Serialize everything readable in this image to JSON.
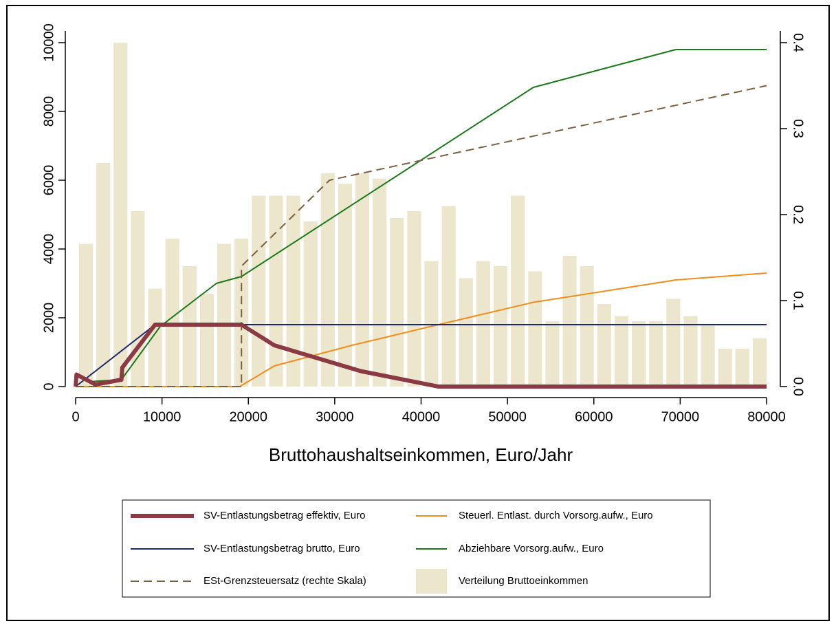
{
  "chart_data": {
    "type": "line",
    "xlabel": "Bruttohaushaltseinkommen, Euro/Jahr",
    "xlim": [
      0,
      80000
    ],
    "xticks": [
      0,
      10000,
      20000,
      30000,
      40000,
      50000,
      60000,
      70000,
      80000
    ],
    "ylim": [
      0,
      10000
    ],
    "yticks": [
      0,
      2000,
      4000,
      6000,
      8000,
      10000
    ],
    "y2lim": [
      0,
      0.4
    ],
    "y2ticks": [
      {
        "value": 0,
        "label": "0.0"
      },
      0.1,
      0.2,
      0.3,
      0.4
    ],
    "histogram": {
      "name": "Verteilung Bruttoeinkommen",
      "color": "#ebe6cc",
      "bins": [
        0,
        2000,
        4000,
        6000,
        8000,
        10000,
        12000,
        14000,
        16000,
        18000,
        20000,
        22000,
        24000,
        26000,
        28000,
        30000,
        32000,
        34000,
        36000,
        38000,
        40000,
        42000,
        44000,
        46000,
        48000,
        50000,
        52000,
        54000,
        56000,
        58000,
        60000,
        62000,
        64000,
        66000,
        68000,
        70000,
        72000,
        74000,
        76000,
        78000,
        80000
      ],
      "counts": [
        4150,
        6500,
        10000,
        5100,
        2850,
        4300,
        3500,
        2700,
        4150,
        4300,
        5550,
        5550,
        5550,
        4800,
        6200,
        5900,
        6200,
        6050,
        4900,
        5100,
        3650,
        5250,
        3150,
        3650,
        3500,
        5550,
        3350,
        1900,
        3800,
        3500,
        2400,
        2050,
        1900,
        1900,
        2550,
        2050,
        1800,
        1100,
        1100,
        1400
      ]
    },
    "series": [
      {
        "name": "SV-Entlastungsbetrag effektiv, Euro",
        "color": "#8b3a44",
        "width": 6,
        "x": [
          0,
          100,
          2300,
          5300,
          5400,
          9200,
          19200,
          23000,
          27000,
          33000,
          42000,
          80000
        ],
        "values": [
          0,
          350,
          60,
          200,
          550,
          1800,
          1800,
          1200,
          900,
          450,
          0,
          0
        ]
      },
      {
        "name": "SV-Entlastungsbetrag brutto, Euro",
        "color": "#1a2a6c",
        "width": 2,
        "x": [
          0,
          9200,
          80000
        ],
        "values": [
          0,
          1800,
          1800
        ]
      },
      {
        "name": "ESt-Grenzsteuersatz (rechte Skala)",
        "color": "#7a6040",
        "width": 2,
        "dashed": true,
        "axis": "y2",
        "x": [
          0,
          19200,
          19200,
          29400,
          80000
        ],
        "values": [
          0,
          0,
          0.14,
          0.24,
          0.35
        ]
      },
      {
        "name": "Steuerl. Entlast. durch Vorsorg.aufw., Euro",
        "color": "#f28c1a",
        "width": 2,
        "x": [
          0,
          19000,
          23000,
          32000,
          42000,
          53000,
          69500,
          80000
        ],
        "values": [
          0,
          0,
          600,
          1200,
          1800,
          2450,
          3100,
          3300
        ]
      },
      {
        "name": "Abziehbare Vorsorg.aufw., Euro",
        "color": "#1a7a1a",
        "width": 2,
        "x": [
          2000,
          5300,
          9800,
          16300,
          19200,
          53000,
          69500,
          80000
        ],
        "values": [
          150,
          200,
          1750,
          3000,
          3200,
          8700,
          9800,
          9800
        ]
      }
    ]
  }
}
